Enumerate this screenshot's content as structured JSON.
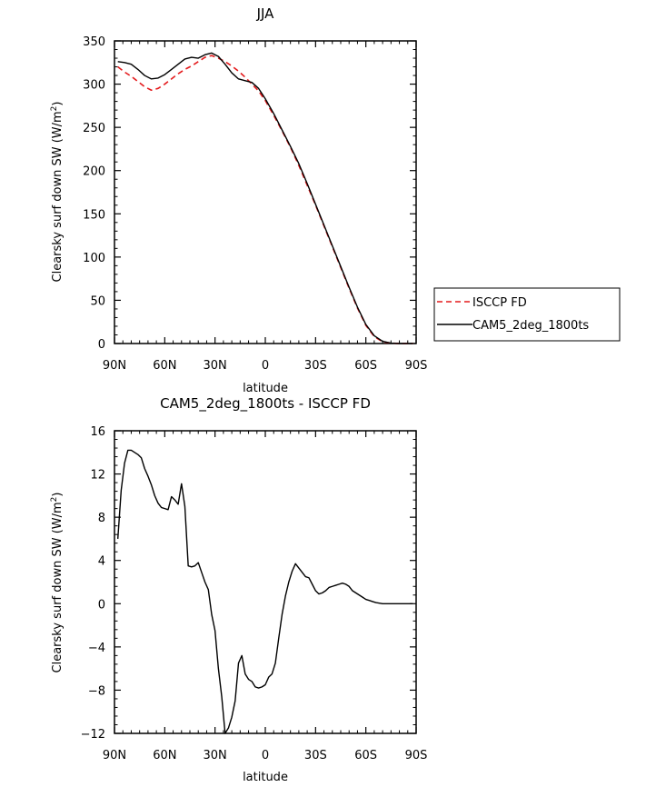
{
  "chart_data": [
    {
      "type": "line",
      "title": "JJA",
      "xlabel": "latitude",
      "ylabel": "Clearsky surf down SW (W/m²)",
      "x_tick_labels": [
        "90N",
        "60N",
        "30N",
        "0",
        "30S",
        "60S",
        "90S"
      ],
      "x_ticks": [
        90,
        60,
        30,
        0,
        -30,
        -60,
        -90
      ],
      "xlim": [
        90,
        -90
      ],
      "ylim": [
        0,
        350
      ],
      "y_ticks": [
        0,
        50,
        100,
        150,
        200,
        250,
        300,
        350
      ],
      "legend_position": "right",
      "series": [
        {
          "name": "ISCCP FD",
          "color": "#e41a1c",
          "dash": "dashed",
          "x": [
            88,
            84,
            80,
            76,
            72,
            68,
            64,
            60,
            56,
            52,
            48,
            44,
            40,
            36,
            32,
            28,
            24,
            20,
            16,
            12,
            8,
            4,
            0,
            -5,
            -10,
            -15,
            -20,
            -25,
            -30,
            -35,
            -40,
            -45,
            -50,
            -55,
            -60,
            -65,
            -70,
            -75,
            -80,
            -85,
            -88
          ],
          "y": [
            320,
            314,
            309,
            303,
            297,
            293,
            295,
            300,
            306,
            312,
            317,
            321,
            326,
            331,
            333,
            330,
            326,
            321,
            315,
            308,
            300,
            292,
            281,
            264,
            246,
            227,
            206,
            183,
            160,
            136,
            112,
            88,
            64,
            41,
            21,
            8,
            2,
            0.5,
            0,
            0,
            0
          ]
        },
        {
          "name": "CAM5_2deg_1800ts",
          "color": "#000000",
          "dash": "solid",
          "x": [
            88,
            84,
            80,
            76,
            72,
            68,
            64,
            60,
            56,
            52,
            48,
            44,
            40,
            36,
            32,
            28,
            24,
            20,
            16,
            12,
            8,
            4,
            0,
            -5,
            -10,
            -15,
            -20,
            -25,
            -30,
            -35,
            -40,
            -45,
            -50,
            -55,
            -60,
            -65,
            -70,
            -75,
            -80,
            -85,
            -88
          ],
          "y": [
            326,
            325,
            323,
            317,
            310,
            306,
            307,
            311,
            317,
            323,
            329,
            331,
            330,
            334,
            336,
            332,
            323,
            313,
            306,
            304,
            302,
            295,
            283,
            266,
            247,
            228,
            208,
            185,
            161,
            137,
            113,
            89,
            65,
            42,
            22,
            9,
            2.5,
            0.5,
            0,
            0,
            0
          ]
        }
      ]
    },
    {
      "type": "line",
      "title": "CAM5_2deg_1800ts - ISCCP FD",
      "xlabel": "latitude",
      "ylabel": "Clearsky surf down SW (W/m²)",
      "x_tick_labels": [
        "90N",
        "60N",
        "30N",
        "0",
        "30S",
        "60S",
        "90S"
      ],
      "x_ticks": [
        90,
        60,
        30,
        0,
        -30,
        -60,
        -90
      ],
      "xlim": [
        90,
        -90
      ],
      "ylim": [
        -12,
        16
      ],
      "y_ticks": [
        -12,
        -8,
        -4,
        0,
        4,
        8,
        12,
        16
      ],
      "series": [
        {
          "color": "#000000",
          "dash": "solid",
          "x": [
            88,
            86,
            84,
            82,
            80,
            78,
            76,
            74,
            72,
            70,
            68,
            66,
            64,
            62,
            60,
            58,
            56,
            54,
            52,
            50,
            48,
            46,
            44,
            42,
            40,
            38,
            36,
            34,
            32,
            30,
            28,
            26,
            24,
            22,
            20,
            18,
            16,
            14,
            12,
            10,
            8,
            6,
            4,
            2,
            0,
            -2,
            -4,
            -6,
            -8,
            -10,
            -12,
            -14,
            -16,
            -18,
            -20,
            -22,
            -24,
            -26,
            -28,
            -30,
            -32,
            -34,
            -36,
            -38,
            -40,
            -42,
            -44,
            -46,
            -48,
            -50,
            -52,
            -54,
            -56,
            -58,
            -60,
            -62,
            -64,
            -66,
            -68,
            -70,
            -72,
            -74,
            -76,
            -78,
            -80,
            -82,
            -84,
            -86,
            -88
          ],
          "y": [
            6.0,
            10.5,
            13.0,
            14.2,
            14.2,
            14.0,
            13.8,
            13.5,
            12.5,
            11.8,
            11.0,
            10.0,
            9.3,
            8.9,
            8.8,
            8.7,
            9.9,
            9.6,
            9.2,
            11.1,
            9.0,
            3.5,
            3.4,
            3.5,
            3.8,
            2.9,
            2.0,
            1.3,
            -1.0,
            -2.5,
            -6.0,
            -8.6,
            -12.0,
            -11.5,
            -10.5,
            -9.0,
            -5.5,
            -4.8,
            -6.5,
            -7.0,
            -7.2,
            -7.7,
            -7.8,
            -7.7,
            -7.5,
            -6.8,
            -6.5,
            -5.5,
            -3.2,
            -1.0,
            0.7,
            2.0,
            3.0,
            3.7,
            3.3,
            2.9,
            2.5,
            2.4,
            1.8,
            1.2,
            0.9,
            1.0,
            1.2,
            1.5,
            1.6,
            1.7,
            1.8,
            1.9,
            1.8,
            1.6,
            1.2,
            1.0,
            0.8,
            0.6,
            0.4,
            0.3,
            0.2,
            0.1,
            0.05,
            0.0,
            0.0,
            0.0,
            0.0,
            0.0,
            0.0,
            0.0,
            0.0,
            0.0,
            0.0
          ]
        }
      ]
    }
  ]
}
